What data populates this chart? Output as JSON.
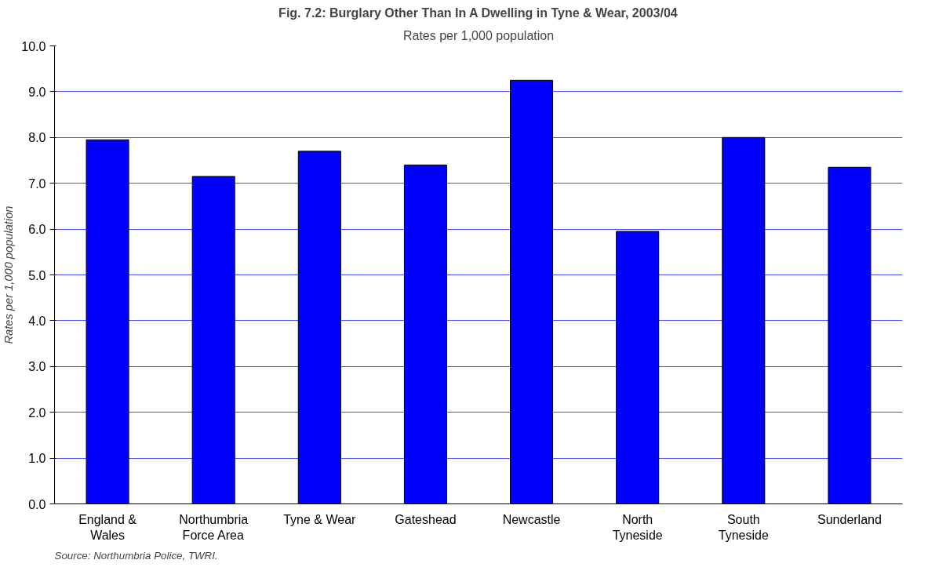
{
  "chart_data": {
    "type": "bar",
    "title": "Fig. 7.2: Burglary Other Than In A Dwelling in Tyne & Wear, 2003/04",
    "subtitle": "Rates per 1,000 population",
    "ylabel": "Rates per 1,000 population",
    "categories": [
      "England &\nWales",
      "Northumbria\nForce Area",
      "Tyne & Wear",
      "Gateshead",
      "Newcastle",
      "North\nTyneside",
      "South\nTyneside",
      "Sunderland"
    ],
    "values": [
      7.95,
      7.15,
      7.7,
      7.4,
      9.25,
      5.95,
      8.0,
      7.35
    ],
    "color": "#0000ff",
    "ylim": [
      0,
      10
    ],
    "yticks": [
      {
        "value": 0,
        "label": "0.0"
      },
      {
        "value": 1,
        "label": "1.0"
      },
      {
        "value": 2,
        "label": "2.0"
      },
      {
        "value": 3,
        "label": "3.0"
      },
      {
        "value": 4,
        "label": "4.0"
      },
      {
        "value": 5,
        "label": "5.0"
      },
      {
        "value": 6,
        "label": "6.0"
      },
      {
        "value": 7,
        "label": "7.0"
      },
      {
        "value": 8,
        "label": "8.0"
      },
      {
        "value": 9,
        "label": "9.0"
      },
      {
        "value": 10,
        "label": "10.0"
      }
    ],
    "grid": "y",
    "annotations": [
      "Source: Northumbria Police, TWRI."
    ]
  }
}
